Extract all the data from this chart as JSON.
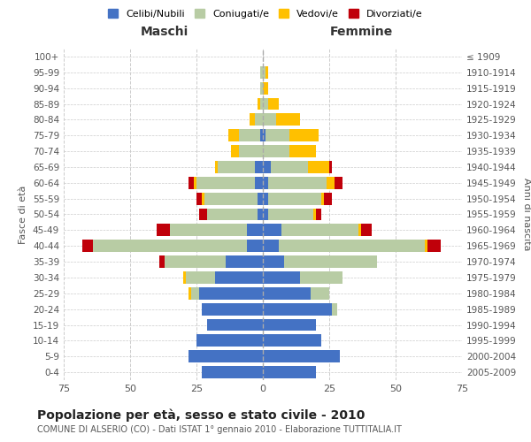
{
  "age_groups": [
    "0-4",
    "5-9",
    "10-14",
    "15-19",
    "20-24",
    "25-29",
    "30-34",
    "35-39",
    "40-44",
    "45-49",
    "50-54",
    "55-59",
    "60-64",
    "65-69",
    "70-74",
    "75-79",
    "80-84",
    "85-89",
    "90-94",
    "95-99",
    "100+"
  ],
  "birth_years": [
    "2005-2009",
    "2000-2004",
    "1995-1999",
    "1990-1994",
    "1985-1989",
    "1980-1984",
    "1975-1979",
    "1970-1974",
    "1965-1969",
    "1960-1964",
    "1955-1959",
    "1950-1954",
    "1945-1949",
    "1940-1944",
    "1935-1939",
    "1930-1934",
    "1925-1929",
    "1920-1924",
    "1915-1919",
    "1910-1914",
    "≤ 1909"
  ],
  "male": {
    "celibe": [
      23,
      28,
      25,
      21,
      23,
      24,
      18,
      14,
      6,
      6,
      2,
      2,
      3,
      3,
      0,
      1,
      0,
      0,
      0,
      0,
      0
    ],
    "coniugato": [
      0,
      0,
      0,
      0,
      0,
      3,
      11,
      23,
      58,
      29,
      19,
      20,
      22,
      14,
      9,
      8,
      3,
      1,
      1,
      1,
      0
    ],
    "vedovo": [
      0,
      0,
      0,
      0,
      0,
      1,
      1,
      0,
      0,
      0,
      0,
      1,
      1,
      1,
      3,
      4,
      2,
      1,
      0,
      0,
      0
    ],
    "divorziato": [
      0,
      0,
      0,
      0,
      0,
      0,
      0,
      2,
      4,
      5,
      3,
      2,
      2,
      0,
      0,
      0,
      0,
      0,
      0,
      0,
      0
    ]
  },
  "female": {
    "nubile": [
      20,
      29,
      22,
      20,
      26,
      18,
      14,
      8,
      6,
      7,
      2,
      2,
      2,
      3,
      0,
      1,
      0,
      0,
      0,
      0,
      0
    ],
    "coniugata": [
      0,
      0,
      0,
      0,
      2,
      7,
      16,
      35,
      55,
      29,
      17,
      20,
      22,
      14,
      10,
      9,
      5,
      2,
      0,
      1,
      0
    ],
    "vedova": [
      0,
      0,
      0,
      0,
      0,
      0,
      0,
      0,
      1,
      1,
      1,
      1,
      3,
      8,
      10,
      11,
      9,
      4,
      2,
      1,
      0
    ],
    "divorziata": [
      0,
      0,
      0,
      0,
      0,
      0,
      0,
      0,
      5,
      4,
      2,
      3,
      3,
      1,
      0,
      0,
      0,
      0,
      0,
      0,
      0
    ]
  },
  "colors": {
    "celibe": "#4472c4",
    "coniugato": "#b8cca4",
    "vedovo": "#ffc000",
    "divorziato": "#c0000a"
  },
  "xlim": 75,
  "title": "Popolazione per età, sesso e stato civile - 2010",
  "subtitle": "COMUNE DI ALSERIO (CO) - Dati ISTAT 1° gennaio 2010 - Elaborazione TUTTITALIA.IT",
  "xlabel_left": "Maschi",
  "xlabel_right": "Femmine",
  "ylabel_left": "Fasce di età",
  "ylabel_right": "Anni di nascita",
  "legend_labels": [
    "Celibi/Nubili",
    "Coniugati/e",
    "Vedovi/e",
    "Divorziati/e"
  ],
  "background_color": "#ffffff",
  "plot_bg_color": "#ffffff",
  "grid_color": "#cccccc"
}
